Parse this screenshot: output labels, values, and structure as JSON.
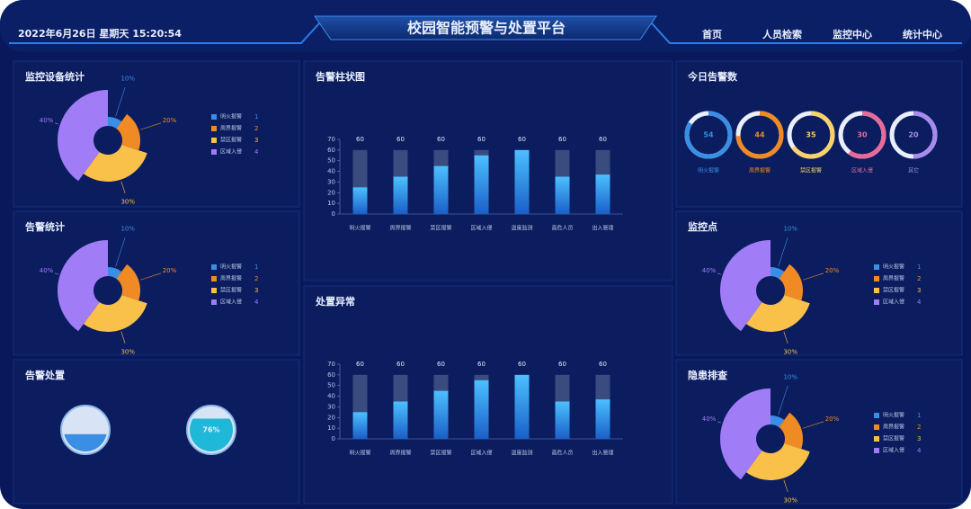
{
  "header": {
    "datetime": "2022年6月26日 星期天 15:20:54",
    "title": "校园智能预警与处置平台",
    "nav": [
      "首页",
      "人员检索",
      "监控中心",
      "统计中心"
    ]
  },
  "chart_data": [
    {
      "type": "pie",
      "title": "监控设备统计",
      "categories": [
        "明火报警",
        "周界报警",
        "禁区报警",
        "区域入侵"
      ],
      "values": [
        10,
        20,
        30,
        40
      ],
      "value_labels": [
        "10%",
        "20%",
        "30%",
        "40%"
      ],
      "legend_numbers": [
        1,
        2,
        3,
        4
      ],
      "colors": [
        "#3a8ee6",
        "#f08a24",
        "#f9c04a",
        "#a17cf7"
      ]
    },
    {
      "type": "pie",
      "title": "告警统计",
      "categories": [
        "明火报警",
        "周界报警",
        "禁区报警",
        "区域入侵"
      ],
      "values": [
        10,
        20,
        30,
        40
      ],
      "value_labels": [
        "10%",
        "20%",
        "30%",
        "40%"
      ],
      "legend_numbers": [
        1,
        2,
        3,
        4
      ],
      "colors": [
        "#3a8ee6",
        "#f08a24",
        "#f9c04a",
        "#a17cf7"
      ]
    },
    {
      "type": "gauge",
      "title": "告警处置",
      "gauges": [
        {
          "value": 40,
          "color": "#3a8ee6"
        },
        {
          "value": 76,
          "value_label": "76%",
          "color": "#1fb8d8"
        }
      ]
    },
    {
      "type": "bar",
      "title": "告警柱状图",
      "categories": [
        "明火报警",
        "周界报警",
        "禁区报警",
        "区域入侵",
        "温度监测",
        "高危人员",
        "出入管理"
      ],
      "background_values": [
        60,
        60,
        60,
        60,
        60,
        60,
        60
      ],
      "values": [
        25,
        35,
        45,
        55,
        60,
        35,
        37
      ],
      "ylim": [
        0,
        70
      ],
      "yticks": [
        0,
        10,
        20,
        30,
        40,
        50,
        60,
        70
      ],
      "color": "#3aa0f0"
    },
    {
      "type": "bar",
      "title": "处置异常",
      "categories": [
        "明火报警",
        "周界报警",
        "禁区报警",
        "区域入侵",
        "温度监测",
        "高危人员",
        "出入管理"
      ],
      "background_values": [
        60,
        60,
        60,
        60,
        60,
        60,
        60
      ],
      "values": [
        25,
        35,
        45,
        55,
        60,
        35,
        37
      ],
      "ylim": [
        0,
        70
      ],
      "yticks": [
        0,
        10,
        20,
        30,
        40,
        50,
        60,
        70
      ],
      "color": "#3aa0f0"
    },
    {
      "type": "ring",
      "title": "今日告警数",
      "categories": [
        "明火报警",
        "周界报警",
        "禁区报警",
        "区域入侵",
        "其它"
      ],
      "values": [
        54,
        44,
        35,
        30,
        20
      ],
      "colors": [
        "#3a8ee6",
        "#f08a24",
        "#f9d36a",
        "#e86a9a",
        "#a98af0"
      ]
    },
    {
      "type": "pie",
      "title": "监控点",
      "categories": [
        "明火报警",
        "周界报警",
        "禁区报警",
        "区域入侵"
      ],
      "values": [
        10,
        20,
        30,
        40
      ],
      "value_labels": [
        "10%",
        "20%",
        "30%",
        "40%"
      ],
      "legend_numbers": [
        1,
        2,
        3,
        4
      ],
      "colors": [
        "#3a8ee6",
        "#f08a24",
        "#f9c04a",
        "#a17cf7"
      ]
    },
    {
      "type": "pie",
      "title": "隐患排查",
      "categories": [
        "明火报警",
        "周界报警",
        "禁区报警",
        "区域入侵"
      ],
      "values": [
        10,
        20,
        30,
        40
      ],
      "value_labels": [
        "10%",
        "20%",
        "30%",
        "40%"
      ],
      "legend_numbers": [
        1,
        2,
        3,
        4
      ],
      "colors": [
        "#3a8ee6",
        "#f08a24",
        "#f9c04a",
        "#a17cf7"
      ]
    }
  ]
}
